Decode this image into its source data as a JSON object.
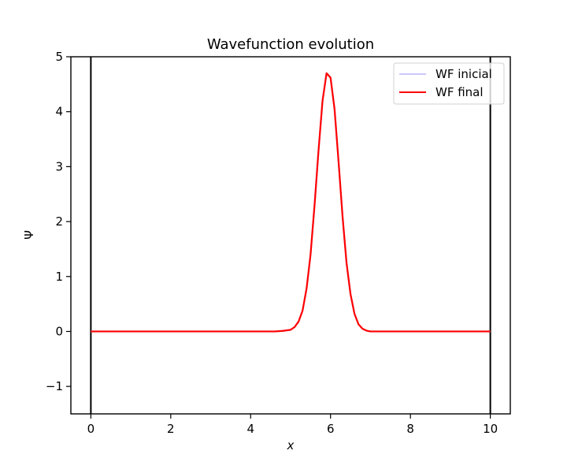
{
  "chart_data": {
    "type": "line",
    "title": "Wavefunction evolution",
    "xlabel": "x",
    "ylabel": "Ψ",
    "xlim": [
      -0.5,
      10.5
    ],
    "ylim": [
      -1.5,
      5
    ],
    "xticks": [
      0,
      2,
      4,
      6,
      8,
      10
    ],
    "xtick_labels": [
      "0",
      "2",
      "4",
      "6",
      "8",
      "10"
    ],
    "yticks": [
      -1,
      0,
      1,
      2,
      3,
      4,
      5
    ],
    "ytick_labels": [
      "−1",
      "0",
      "1",
      "2",
      "3",
      "4",
      "5"
    ],
    "grid": false,
    "legend_position": "top-right",
    "vlines": [
      0,
      10
    ],
    "series": [
      {
        "name": "WF inicial",
        "color": "#c8c8ff",
        "x": [
          0,
          4.6,
          4.8,
          5.0,
          5.1,
          5.2,
          5.3,
          5.4,
          5.5,
          5.6,
          5.7,
          5.8,
          5.9,
          6.0,
          6.1,
          6.2,
          6.3,
          6.4,
          6.5,
          6.6,
          6.7,
          6.8,
          6.9,
          7.0,
          7.2,
          10
        ],
        "y": [
          0,
          0,
          0.01,
          0.03,
          0.08,
          0.18,
          0.38,
          0.78,
          1.4,
          2.3,
          3.3,
          4.2,
          4.7,
          4.62,
          4.05,
          3.1,
          2.1,
          1.25,
          0.68,
          0.32,
          0.13,
          0.05,
          0.015,
          0.0,
          0,
          0
        ]
      },
      {
        "name": "WF final",
        "color": "#ff0000",
        "x": [
          0,
          4.6,
          4.8,
          5.0,
          5.1,
          5.2,
          5.3,
          5.4,
          5.5,
          5.6,
          5.7,
          5.8,
          5.9,
          6.0,
          6.1,
          6.2,
          6.3,
          6.4,
          6.5,
          6.6,
          6.7,
          6.8,
          6.9,
          7.0,
          7.2,
          10
        ],
        "y": [
          0,
          0,
          0.01,
          0.03,
          0.08,
          0.18,
          0.38,
          0.78,
          1.4,
          2.3,
          3.3,
          4.2,
          4.7,
          4.62,
          4.05,
          3.1,
          2.1,
          1.25,
          0.68,
          0.32,
          0.13,
          0.05,
          0.015,
          0.0,
          0,
          0
        ]
      }
    ]
  }
}
